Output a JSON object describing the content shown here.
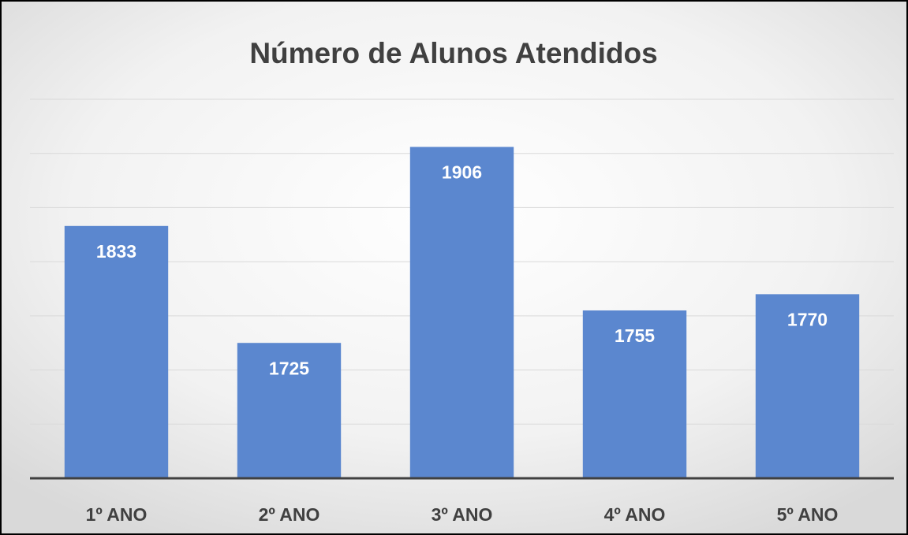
{
  "chart_data": {
    "type": "bar",
    "title": "Número de Alunos Atendidos",
    "categories": [
      "1º ANO",
      "2º ANO",
      "3º ANO",
      "4º ANO",
      "5º ANO"
    ],
    "values": [
      1833,
      1725,
      1906,
      1755,
      1770
    ],
    "color": "#5b87cf",
    "ylim": [
      1600,
      1950
    ],
    "yticks": [
      1600,
      1650,
      1700,
      1750,
      1800,
      1850,
      1900,
      1950
    ],
    "grid": true
  }
}
